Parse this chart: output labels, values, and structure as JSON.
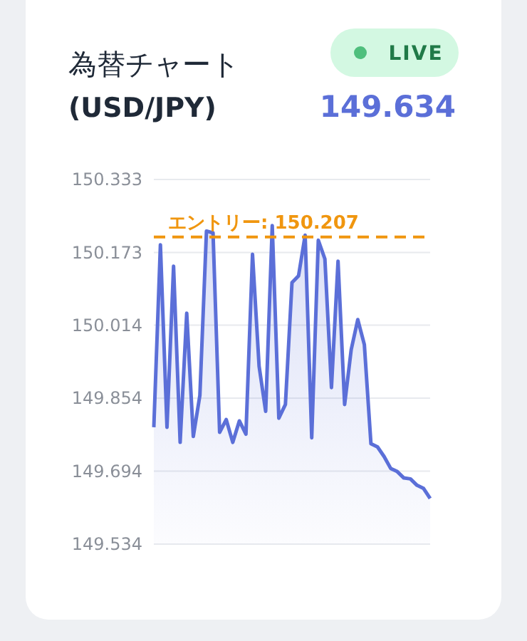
{
  "chart_data": {
    "type": "area",
    "title": "為替チャート (USD/JPY)",
    "annotations": [
      "LIVE",
      "149.634"
    ],
    "categories": [
      null,
      null,
      null,
      null,
      null,
      null,
      null,
      null,
      null,
      null,
      null,
      null,
      null,
      null,
      null,
      null,
      null,
      null,
      null,
      null,
      null,
      null,
      null,
      null,
      null,
      null,
      null,
      null,
      null,
      null,
      null,
      null,
      null,
      null,
      null,
      null,
      null,
      null,
      null,
      null,
      null,
      null,
      null
    ],
    "series": [
      {
        "color": "#5b6fd8",
        "values": [
          149.79,
          150.19,
          149.79,
          150.143,
          149.757,
          150.04,
          149.77,
          149.86,
          150.22,
          150.216,
          149.779,
          149.807,
          149.757,
          149.804,
          149.775,
          150.169,
          149.924,
          149.825,
          150.232,
          149.81,
          149.84,
          150.107,
          150.122,
          150.211,
          149.767,
          150.2,
          150.159,
          149.877,
          150.154,
          149.84,
          149.96,
          150.026,
          149.971,
          149.754,
          149.747,
          149.726,
          149.7,
          149.693,
          149.679,
          149.677,
          149.663,
          149.656,
          149.634
        ]
      }
    ],
    "ylim": [
      149.534,
      150.333
    ],
    "yticks": [
      149.534,
      149.694,
      149.854,
      150.014,
      150.173,
      150.333
    ],
    "grid": "y",
    "ref_lines": [
      {
        "axis": "y",
        "value": 150.207,
        "label": "エントリー: 150.207",
        "color": "#f0960f",
        "line_style": "dashed"
      }
    ]
  }
}
